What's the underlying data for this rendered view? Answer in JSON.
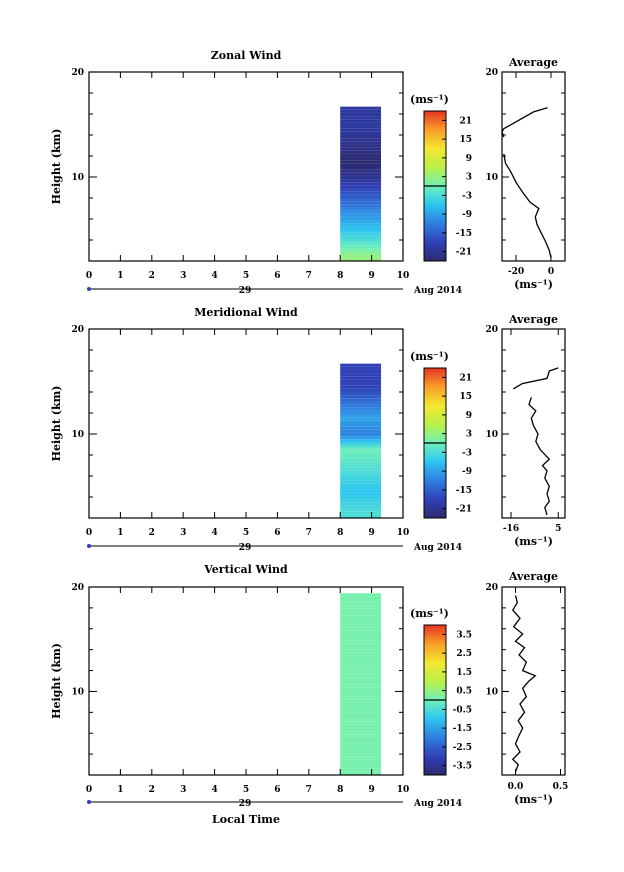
{
  "chart_data": [
    {
      "type": "heatmap",
      "title": "Zonal Wind",
      "ylabel": "Height (km)",
      "xlabel": "",
      "xlim": [
        0,
        10
      ],
      "ylim": [
        2,
        20
      ],
      "x_ticks": [
        "0",
        "1",
        "2",
        "3",
        "4",
        "5",
        "6",
        "7",
        "8",
        "9",
        "10"
      ],
      "y_ticks": [
        "20",
        "10"
      ],
      "date_label": "29",
      "month_label": "Aug 2014",
      "colorbar": {
        "unit": "(ms⁻¹)",
        "ticks": [
          "21",
          "15",
          "9",
          "3",
          "-3",
          "-9",
          "-15",
          "-21"
        ],
        "range": [
          -24,
          24
        ]
      },
      "data_extent": {
        "time": [
          8.0,
          9.3
        ],
        "height": [
          2.0,
          16.5
        ]
      },
      "value_profile": [
        {
          "height": 2.5,
          "value": 3
        },
        {
          "height": 4.0,
          "value": -3
        },
        {
          "height": 6.0,
          "value": -9
        },
        {
          "height": 8.0,
          "value": -15
        },
        {
          "height": 10.0,
          "value": -21
        },
        {
          "height": 11.3,
          "value": -24
        },
        {
          "height": 14.5,
          "value": -20
        }
      ],
      "average": {
        "title": "Average",
        "xlabel": "(ms⁻¹)",
        "x_ticks": [
          "-20",
          "0"
        ],
        "xlim": [
          -28,
          8
        ],
        "ylim": [
          2,
          20
        ],
        "y_ticks": [
          "20",
          "10"
        ],
        "profile": [
          {
            "x": 0,
            "y": 2.3
          },
          {
            "x": -1,
            "y": 3.0
          },
          {
            "x": -3,
            "y": 3.8
          },
          {
            "x": -6,
            "y": 4.8
          },
          {
            "x": -8,
            "y": 5.5
          },
          {
            "x": -9,
            "y": 6.2
          },
          {
            "x": -7,
            "y": 7.0
          },
          {
            "x": -12,
            "y": 7.6
          },
          {
            "x": -16,
            "y": 8.5
          },
          {
            "x": -20,
            "y": 9.5
          },
          {
            "x": -23,
            "y": 10.5
          },
          {
            "x": -26,
            "y": 11.3
          },
          {
            "x": -27,
            "y": 12.2
          }
        ],
        "profile_upper": [
          {
            "x": -27,
            "y": 13.8
          },
          {
            "x": -28,
            "y": 14.3
          },
          {
            "x": -27,
            "y": 14.6
          },
          {
            "x": -10,
            "y": 16.2
          },
          {
            "x": -2,
            "y": 16.6
          }
        ]
      }
    },
    {
      "type": "heatmap",
      "title": "Meridional Wind",
      "ylabel": "Height (km)",
      "xlabel": "",
      "xlim": [
        0,
        10
      ],
      "ylim": [
        2,
        20
      ],
      "x_ticks": [
        "0",
        "1",
        "2",
        "3",
        "4",
        "5",
        "6",
        "7",
        "8",
        "9",
        "10"
      ],
      "y_ticks": [
        "20",
        "10"
      ],
      "date_label": "29",
      "month_label": "Aug 2014",
      "colorbar": {
        "unit": "(ms⁻¹)",
        "ticks": [
          "21",
          "15",
          "9",
          "3",
          "-3",
          "-9",
          "-15",
          "-21"
        ],
        "range": [
          -24,
          24
        ]
      },
      "data_extent": {
        "time": [
          8.0,
          9.3
        ],
        "height": [
          2.0,
          16.5
        ]
      },
      "value_profile": [
        {
          "height": 2.5,
          "value": -3
        },
        {
          "height": 4.5,
          "value": -6
        },
        {
          "height": 6.5,
          "value": -3
        },
        {
          "height": 8.5,
          "value": 0
        },
        {
          "height": 10.0,
          "value": -12
        },
        {
          "height": 11.5,
          "value": -9
        },
        {
          "height": 14.5,
          "value": -18
        }
      ],
      "average": {
        "title": "Average",
        "xlabel": "(ms⁻¹)",
        "x_ticks": [
          "-16",
          "5"
        ],
        "xlim": [
          -20,
          8
        ],
        "ylim": [
          2,
          20
        ],
        "y_ticks": [
          "20",
          "10"
        ],
        "profile": [
          {
            "x": 0,
            "y": 2.3
          },
          {
            "x": -1,
            "y": 3.0
          },
          {
            "x": 1,
            "y": 3.6
          },
          {
            "x": 0,
            "y": 4.3
          },
          {
            "x": 1,
            "y": 5.0
          },
          {
            "x": -1,
            "y": 5.8
          },
          {
            "x": 0,
            "y": 6.5
          },
          {
            "x": -2,
            "y": 7.0
          },
          {
            "x": 1,
            "y": 7.6
          },
          {
            "x": -3,
            "y": 8.5
          },
          {
            "x": -5,
            "y": 9.3
          },
          {
            "x": -4,
            "y": 10.0
          },
          {
            "x": -6,
            "y": 10.8
          },
          {
            "x": -7,
            "y": 11.5
          },
          {
            "x": -5,
            "y": 12.2
          },
          {
            "x": -8,
            "y": 12.8
          },
          {
            "x": -7,
            "y": 13.5
          }
        ],
        "profile_upper": [
          {
            "x": -15,
            "y": 14.3
          },
          {
            "x": -11,
            "y": 14.8
          },
          {
            "x": 0,
            "y": 15.3
          },
          {
            "x": 1,
            "y": 16.0
          },
          {
            "x": 5,
            "y": 16.3
          }
        ]
      }
    },
    {
      "type": "heatmap",
      "title": "Vertical Wind",
      "ylabel": "Height (km)",
      "xlabel": "Local Time",
      "xlim": [
        0,
        10
      ],
      "ylim": [
        2,
        20
      ],
      "x_ticks": [
        "0",
        "1",
        "2",
        "3",
        "4",
        "5",
        "6",
        "7",
        "8",
        "9",
        "10"
      ],
      "y_ticks": [
        "20",
        "10"
      ],
      "date_label": "29",
      "month_label": "Aug 2014",
      "colorbar": {
        "unit": "(ms⁻¹)",
        "ticks": [
          "3.5",
          "2.5",
          "1.5",
          "0.5",
          "-0.5",
          "-1.5",
          "-2.5",
          "-3.5"
        ],
        "range": [
          -4,
          4
        ]
      },
      "data_extent": {
        "time": [
          8.0,
          9.3
        ],
        "height": [
          2.0,
          19.2
        ]
      },
      "value_profile": [
        {
          "height": 3.0,
          "value": 0.1
        },
        {
          "height": 8.0,
          "value": 0.1
        },
        {
          "height": 13.0,
          "value": 0.1
        },
        {
          "height": 18.0,
          "value": 0.1
        }
      ],
      "average": {
        "title": "Average",
        "xlabel": "(ms⁻¹)",
        "x_ticks": [
          "0.0",
          "0.5"
        ],
        "xlim": [
          -0.15,
          0.55
        ],
        "ylim": [
          2,
          20
        ],
        "y_ticks": [
          "20",
          "10"
        ],
        "profile": [
          {
            "x": 0.0,
            "y": 2.3
          },
          {
            "x": 0.03,
            "y": 3.0
          },
          {
            "x": -0.03,
            "y": 3.5
          },
          {
            "x": 0.05,
            "y": 4.2
          },
          {
            "x": 0.0,
            "y": 5.0
          },
          {
            "x": 0.04,
            "y": 5.8
          },
          {
            "x": 0.08,
            "y": 6.5
          },
          {
            "x": 0.03,
            "y": 7.2
          },
          {
            "x": 0.1,
            "y": 8.0
          },
          {
            "x": 0.05,
            "y": 8.8
          },
          {
            "x": 0.12,
            "y": 9.5
          },
          {
            "x": 0.08,
            "y": 10.3
          },
          {
            "x": 0.15,
            "y": 11.0
          },
          {
            "x": 0.22,
            "y": 11.5
          },
          {
            "x": 0.08,
            "y": 12.0
          },
          {
            "x": 0.12,
            "y": 12.8
          },
          {
            "x": 0.04,
            "y": 13.5
          },
          {
            "x": 0.1,
            "y": 14.2
          },
          {
            "x": 0.0,
            "y": 14.8
          },
          {
            "x": 0.08,
            "y": 15.5
          },
          {
            "x": -0.02,
            "y": 16.2
          },
          {
            "x": 0.05,
            "y": 17.0
          },
          {
            "x": -0.03,
            "y": 17.8
          },
          {
            "x": 0.02,
            "y": 18.5
          },
          {
            "x": 0.0,
            "y": 19.2
          }
        ],
        "profile_upper": []
      }
    }
  ]
}
